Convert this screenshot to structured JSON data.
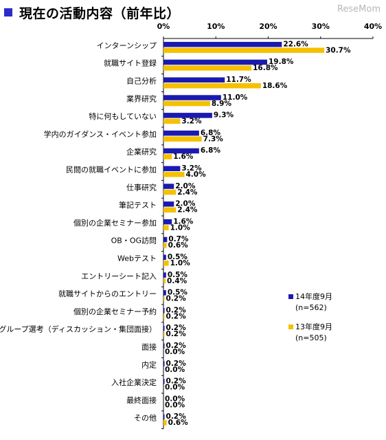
{
  "title": "現在の活動内容（前年比）",
  "watermark": "ReseMom",
  "legend": [
    {
      "name": "14年度9月",
      "note": "(n=562)",
      "color": "#1a1ab0"
    },
    {
      "name": "13年度9月",
      "note": "(n=505)",
      "color": "#f5c000"
    }
  ],
  "chart_data": {
    "type": "bar",
    "orientation": "horizontal",
    "xlim": [
      0,
      40
    ],
    "ticks": [
      "0%",
      "10%",
      "20%",
      "30%",
      "40%"
    ],
    "legend_position": "right",
    "categories": [
      "インターンシップ",
      "就職サイト登録",
      "自己分析",
      "業界研究",
      "特に何もしていない",
      "学内のガイダンス・イベント参加",
      "企業研究",
      "民間の就職イベントに参加",
      "仕事研究",
      "筆記テスト",
      "個別の企業セミナー参加",
      "OB・OG訪問",
      "Webテスト",
      "エントリーシート記入",
      "就職サイトからのエントリー",
      "個別の企業セミナー予約",
      "グループ選考（ディスカッション・集団面接）",
      "面接",
      "内定",
      "入社企業決定",
      "最終面接",
      "その他"
    ],
    "series": [
      {
        "name": "14年度9月",
        "values": [
          22.6,
          19.8,
          11.7,
          11.0,
          9.3,
          6.8,
          6.8,
          3.2,
          2.0,
          2.0,
          1.6,
          0.7,
          0.5,
          0.5,
          0.5,
          0.2,
          0.2,
          0.2,
          0.2,
          0.2,
          0.0,
          0.2
        ],
        "labels": [
          "22.6%",
          "19.8%",
          "11.7%",
          "11.0%",
          "9.3%",
          "6.8%",
          "6.8%",
          "3.2%",
          "2.0%",
          "2.0%",
          "1.6%",
          "0.7%",
          "0.5%",
          "0.5%",
          "0.5%",
          "0.2%",
          "0.2%",
          "0.2%",
          "0.2%",
          "0.2%",
          "0.0%",
          "0.2%"
        ]
      },
      {
        "name": "13年度9月",
        "values": [
          30.7,
          16.8,
          18.6,
          8.9,
          3.2,
          7.3,
          1.6,
          4.0,
          2.4,
          2.4,
          1.0,
          0.6,
          1.0,
          0.4,
          0.2,
          0.2,
          0.2,
          0.0,
          0.0,
          0.0,
          0.0,
          0.6
        ],
        "labels": [
          "30.7%",
          "16.8%",
          "18.6%",
          "8.9%",
          "3.2%",
          "7.3%",
          "1.6%",
          "4.0%",
          "2.4%",
          "2.4%",
          "1.0%",
          "0.6%",
          "1.0%",
          "0.4%",
          "0.2%",
          "0.2%",
          "0.2%",
          "0.0%",
          "0.0%",
          "0.0%",
          "0.0%",
          "0.6%"
        ]
      }
    ]
  }
}
